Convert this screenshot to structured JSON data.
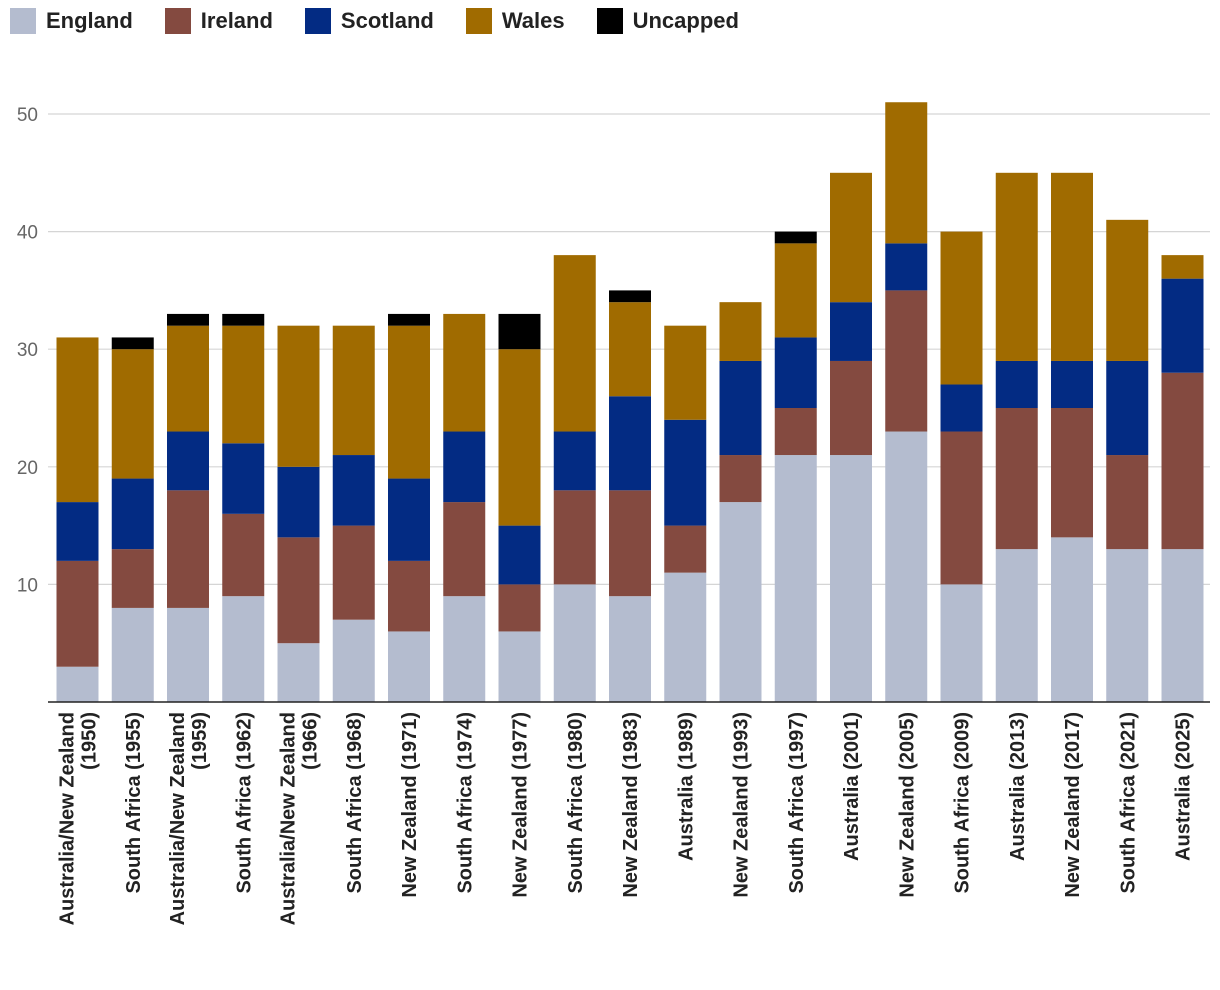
{
  "chart_data": {
    "type": "bar",
    "stacked": true,
    "title": "",
    "xlabel": "",
    "ylabel": "",
    "ylim": [
      0,
      52
    ],
    "yticks": [
      10,
      20,
      30,
      40,
      50
    ],
    "grid": true,
    "legend_position": "top-left",
    "categories": [
      [
        "Australia/New Zealand",
        "(1950)"
      ],
      [
        "South Africa (1955)"
      ],
      [
        "Australia/New Zealand",
        "(1959)"
      ],
      [
        "South Africa (1962)"
      ],
      [
        "Australia/New Zealand",
        "(1966)"
      ],
      [
        "South Africa (1968)"
      ],
      [
        "New Zealand (1971)"
      ],
      [
        "South Africa (1974)"
      ],
      [
        "New Zealand (1977)"
      ],
      [
        "South Africa (1980)"
      ],
      [
        "New Zealand (1983)"
      ],
      [
        "Australia (1989)"
      ],
      [
        "New Zealand (1993)"
      ],
      [
        "South Africa (1997)"
      ],
      [
        "Australia (2001)"
      ],
      [
        "New Zealand (2005)"
      ],
      [
        "South Africa (2009)"
      ],
      [
        "Australia (2013)"
      ],
      [
        "New Zealand (2017)"
      ],
      [
        "South Africa (2021)"
      ],
      [
        "Australia (2025)"
      ]
    ],
    "series": [
      {
        "name": "England",
        "color": "#b4bccf",
        "values": [
          3,
          8,
          8,
          9,
          5,
          7,
          6,
          9,
          6,
          10,
          9,
          11,
          17,
          21,
          21,
          23,
          10,
          13,
          14,
          13,
          13
        ]
      },
      {
        "name": "Ireland",
        "color": "#844a40",
        "values": [
          9,
          5,
          10,
          7,
          9,
          8,
          6,
          8,
          4,
          8,
          9,
          4,
          4,
          4,
          8,
          12,
          13,
          12,
          11,
          8,
          15
        ]
      },
      {
        "name": "Scotland",
        "color": "#032b83",
        "values": [
          5,
          6,
          5,
          6,
          6,
          6,
          7,
          6,
          5,
          5,
          8,
          9,
          8,
          6,
          5,
          4,
          4,
          4,
          4,
          8,
          8
        ]
      },
      {
        "name": "Wales",
        "color": "#a06b00",
        "values": [
          14,
          11,
          9,
          10,
          12,
          11,
          13,
          10,
          15,
          15,
          8,
          8,
          5,
          8,
          11,
          12,
          13,
          16,
          16,
          12,
          2
        ]
      },
      {
        "name": "Uncapped",
        "color": "#000000",
        "values": [
          0,
          1,
          1,
          1,
          0,
          0,
          1,
          0,
          3,
          0,
          1,
          0,
          0,
          1,
          0,
          0,
          0,
          0,
          0,
          0,
          0
        ]
      }
    ]
  }
}
